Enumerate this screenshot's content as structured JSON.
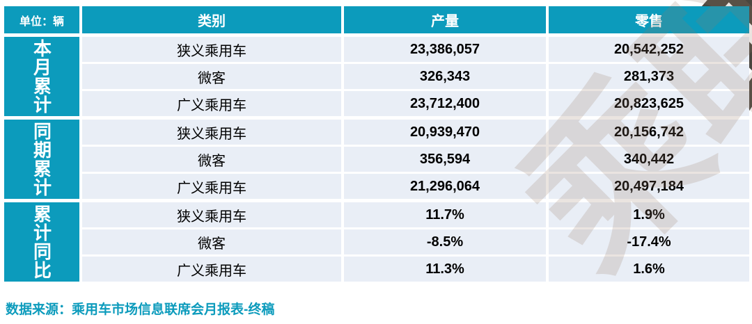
{
  "unit_label": "单位：辆",
  "table": {
    "header": {
      "category": "类别",
      "production": "产量",
      "retail": "零售"
    },
    "groups": [
      {
        "label": "本月累计",
        "rows": [
          {
            "category": "狭义乘用车",
            "production": "23,386,057",
            "retail": "20,542,252"
          },
          {
            "category": "微客",
            "production": "326,343",
            "retail": "281,373"
          },
          {
            "category": "广义乘用车",
            "production": "23,712,400",
            "retail": "20,823,625"
          }
        ]
      },
      {
        "label": "同期累计",
        "rows": [
          {
            "category": "狭义乘用车",
            "production": "20,939,470",
            "retail": "20,156,742"
          },
          {
            "category": "微客",
            "production": "356,594",
            "retail": "340,442"
          },
          {
            "category": "广义乘用车",
            "production": "21,296,064",
            "retail": "20,497,184"
          }
        ]
      },
      {
        "label": "累计同比",
        "rows": [
          {
            "category": "狭义乘用车",
            "production": "11.7%",
            "retail": "1.9%"
          },
          {
            "category": "微客",
            "production": "-8.5%",
            "retail": "-17.4%"
          },
          {
            "category": "广义乘用车",
            "production": "11.3%",
            "retail": "1.6%"
          }
        ]
      }
    ]
  },
  "source_note": "数据来源：乘用车市场信息联席会月报表-终稿",
  "watermark": {
    "text": "乘联会"
  },
  "colors": {
    "teal": "#0c9bbc",
    "row_bg": "#e9eef6"
  }
}
